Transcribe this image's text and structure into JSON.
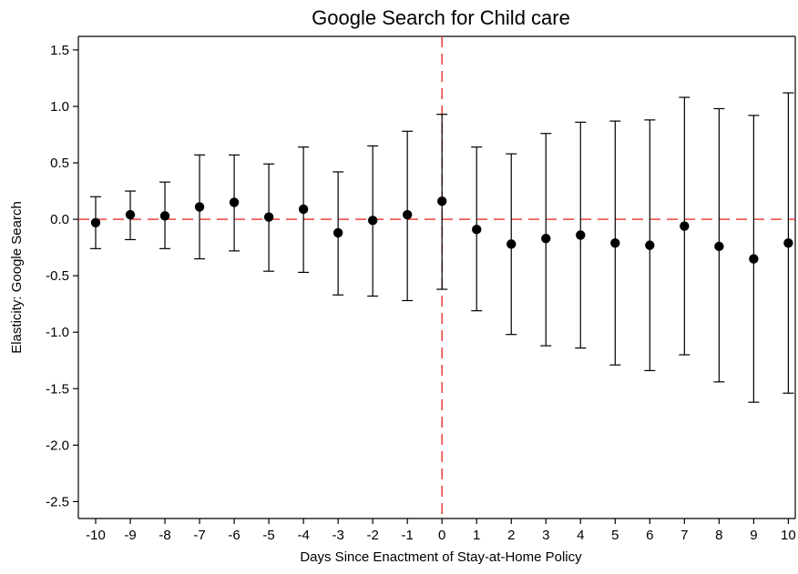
{
  "chart_data": {
    "type": "scatter",
    "title": "Google Search for Child care",
    "xlabel": "Days Since Enactment of Stay-at-Home Policy",
    "ylabel": "Elasticity: Google Search",
    "x": [
      -10,
      -9,
      -8,
      -7,
      -6,
      -5,
      -4,
      -3,
      -2,
      -1,
      0,
      1,
      2,
      3,
      4,
      5,
      6,
      7,
      8,
      9,
      10
    ],
    "y": [
      -0.03,
      0.04,
      0.03,
      0.11,
      0.15,
      0.02,
      0.09,
      -0.12,
      -0.01,
      0.04,
      0.16,
      -0.09,
      -0.22,
      -0.17,
      -0.14,
      -0.21,
      -0.23,
      -0.06,
      -0.24,
      -0.35,
      -0.21
    ],
    "ci_low": [
      -0.26,
      -0.18,
      -0.26,
      -0.35,
      -0.28,
      -0.46,
      -0.47,
      -0.67,
      -0.68,
      -0.72,
      -0.62,
      -0.81,
      -1.02,
      -1.12,
      -1.14,
      -1.29,
      -1.34,
      -1.2,
      -1.44,
      -1.62,
      -1.54
    ],
    "ci_high": [
      0.2,
      0.25,
      0.33,
      0.57,
      0.57,
      0.49,
      0.64,
      0.42,
      0.65,
      0.78,
      0.93,
      0.64,
      0.58,
      0.76,
      0.86,
      0.87,
      0.88,
      1.08,
      0.98,
      0.92,
      1.12
    ],
    "xlim": [
      -10.5,
      10.2
    ],
    "ylim": [
      -2.65,
      1.62
    ],
    "x_ticks": [
      "-10",
      "-9",
      "-8",
      "-7",
      "-6",
      "-5",
      "-4",
      "-3",
      "-2",
      "-1",
      "0",
      "1",
      "2",
      "3",
      "4",
      "5",
      "6",
      "7",
      "8",
      "9",
      "10"
    ],
    "y_ticks": [
      "1.5",
      "1.0",
      "0.5",
      "0.0",
      "-0.5",
      "-1.0",
      "-1.5",
      "-2.0",
      "-2.5"
    ],
    "y_tick_values": [
      1.5,
      1.0,
      0.5,
      0.0,
      -0.5,
      -1.0,
      -1.5,
      -2.0,
      -2.5
    ],
    "reference_lines": {
      "horizontal_y": 0,
      "vertical_x": 0,
      "style": "dashed",
      "color": "#e8322e"
    },
    "marker_color": "#000000",
    "grid": false,
    "legend": "none"
  }
}
